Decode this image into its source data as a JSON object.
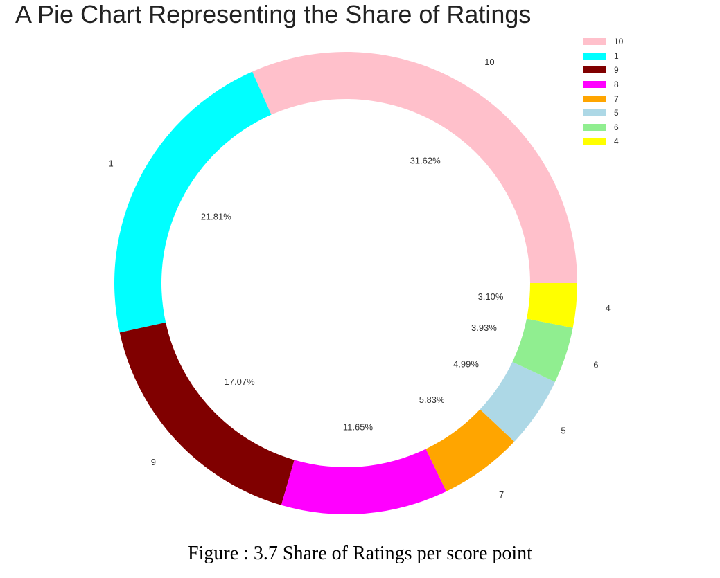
{
  "chart_data": {
    "type": "pie",
    "donut": true,
    "title": "A Pie Chart Representing the Share of Ratings",
    "categories": [
      "10",
      "1",
      "9",
      "8",
      "7",
      "5",
      "6",
      "4"
    ],
    "values": [
      31.62,
      21.81,
      17.07,
      11.65,
      5.83,
      4.99,
      3.93,
      3.1
    ],
    "pct_labels": [
      "31.62%",
      "21.81%",
      "17.07%",
      "11.65%",
      "5.83%",
      "4.99%",
      "3.93%",
      "3.10%"
    ],
    "colors": [
      "#ffc0cb",
      "#00ffff",
      "#800000",
      "#ff00ff",
      "#ffa500",
      "#add8e6",
      "#90ee90",
      "#ffff00"
    ],
    "legend": {
      "placement": "top-right",
      "entries": [
        "10",
        "1",
        "9",
        "8",
        "7",
        "5",
        "6",
        "4"
      ]
    }
  },
  "caption": "Figure : 3.7 Share of Ratings per score point"
}
